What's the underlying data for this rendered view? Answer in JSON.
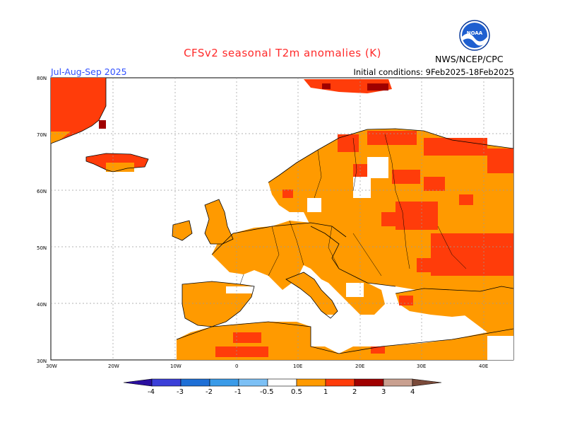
{
  "title": "CFSv2 seasonal T2m anomalies (K)",
  "season": "Jul-Aug-Sep 2025",
  "initial_conditions": "Initial conditions: 9Feb2025-18Feb2025",
  "agency": "NWS/NCEP/CPC",
  "logo": {
    "icon": "noaa-logo-icon",
    "text": "NOAA"
  },
  "axes": {
    "lon_labels": [
      "30W",
      "20W",
      "10W",
      "0",
      "10E",
      "20E",
      "30E",
      "40E"
    ],
    "lat_labels": [
      "30N",
      "40N",
      "50N",
      "60N",
      "70N",
      "80N"
    ]
  },
  "colorbar": {
    "labels": [
      "-4",
      "-3",
      "-2",
      "-1",
      "-0.5",
      "0.5",
      "1",
      "2",
      "3",
      "4"
    ],
    "colors": [
      "#2a0fa0",
      "#3b3fd8",
      "#1e6fd6",
      "#3a9be8",
      "#7cc0f5",
      "#ffffff",
      "#ff9a00",
      "#ff3c0a",
      "#a00000",
      "#c9a090",
      "#7a4a3a"
    ]
  },
  "anomaly_colors": {
    "band_0_5_to_1": "#ff9a00",
    "band_1_to_2": "#ff3c0a",
    "band_2_to_3": "#a00000",
    "band_3_to_4": "#c9a090"
  }
}
